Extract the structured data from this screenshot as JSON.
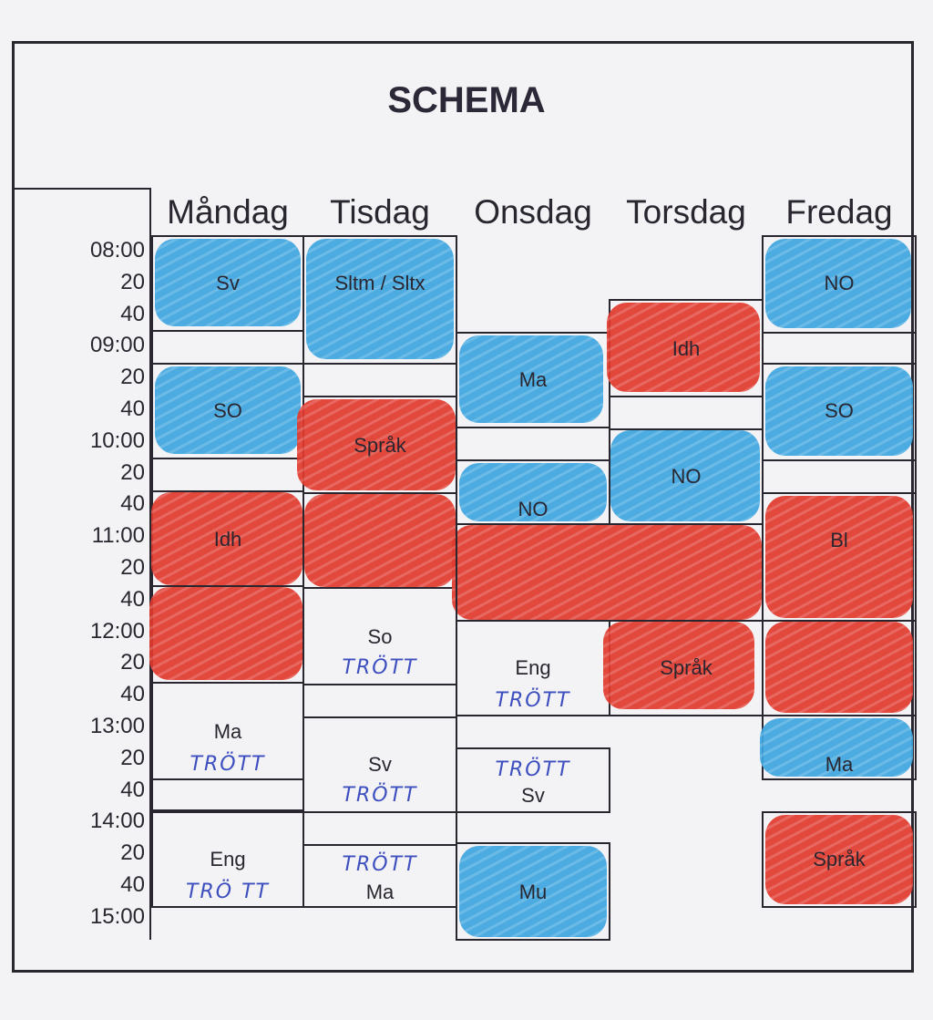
{
  "title": "SCHEMA",
  "days": [
    "Måndag",
    "Tisdag",
    "Onsdag",
    "Torsdag",
    "Fredag"
  ],
  "times": [
    "08:00",
    "20",
    "40",
    "09:00",
    "20",
    "40",
    "10:00",
    "20",
    "40",
    "11:00",
    "20",
    "40",
    "12:00",
    "20",
    "40",
    "13:00",
    "20",
    "40",
    "14:00",
    "20",
    "40",
    "15:00"
  ],
  "colors": {
    "blue": "#3ea6e0",
    "red": "#e23a2e",
    "ink": "#2a2630",
    "note_ink": "#3d4fbf"
  },
  "lessons": {
    "mon_sv": "Sv",
    "mon_so": "SO",
    "mon_idh": "Idh",
    "mon_ma": "Ma",
    "mon_ma_note": "TRÖTT",
    "mon_eng": "Eng",
    "mon_eng_note": "TRÖ TT",
    "tue_sltm": "Sltm / Sltx",
    "tue_sprak": "Språk",
    "tue_so": "So",
    "tue_so_note": "TRÖTT",
    "tue_sv": "Sv",
    "tue_sv_note": "TRÖTT",
    "tue_ma_note": "TRÖTT",
    "tue_ma": "Ma",
    "wed_ma": "Ma",
    "wed_no": "NO",
    "wed_eng": "Eng",
    "wed_eng_note": "TRÖTT",
    "wed_sv_note": "TRÖTT",
    "wed_sv": "Sv",
    "wed_mu": "Mu",
    "thu_idh": "Idh",
    "thu_no": "NO",
    "thu_sprak": "Språk",
    "fri_no": "NO",
    "fri_so": "SO",
    "fri_bi": "Bl",
    "fri_ma": "Ma",
    "fri_sprak": "Språk"
  }
}
